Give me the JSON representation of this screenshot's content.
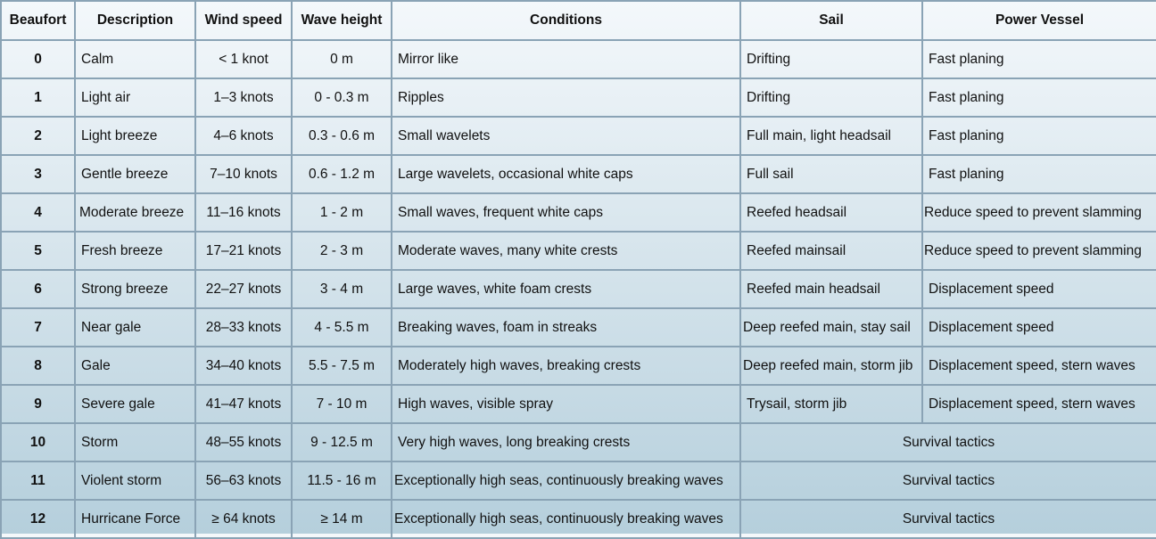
{
  "headers": [
    "Beaufort",
    "Description",
    "Wind speed",
    "Wave height",
    "Conditions",
    "Sail",
    "Power Vessel"
  ],
  "rows": [
    {
      "beaufort": "0",
      "description": "Calm",
      "wind": "< 1 knot",
      "wave": "0 m",
      "conditions": "Mirror like",
      "sail": "Drifting",
      "power": "Fast planing"
    },
    {
      "beaufort": "1",
      "description": "Light air",
      "wind": "1–3 knots",
      "wave": "0 - 0.3 m",
      "conditions": "Ripples",
      "sail": "Drifting",
      "power": "Fast planing"
    },
    {
      "beaufort": "2",
      "description": "Light breeze",
      "wind": "4–6 knots",
      "wave": "0.3 - 0.6 m",
      "conditions": "Small wavelets",
      "sail": "Full main, light headsail",
      "power": "Fast planing"
    },
    {
      "beaufort": "3",
      "description": "Gentle breeze",
      "wind": "7–10 knots",
      "wave": "0.6 - 1.2 m",
      "conditions": "Large wavelets, occasional white caps",
      "sail": "Full sail",
      "power": "Fast planing"
    },
    {
      "beaufort": "4",
      "description": "Moderate breeze",
      "wind": "11–16 knots",
      "wave": "1 - 2 m",
      "conditions": "Small waves, frequent white caps",
      "sail": "Reefed headsail",
      "power": "Reduce speed to prevent slamming"
    },
    {
      "beaufort": "5",
      "description": "Fresh breeze",
      "wind": "17–21 knots",
      "wave": "2 - 3 m",
      "conditions": "Moderate waves, many white crests",
      "sail": "Reefed mainsail",
      "power": "Reduce speed to prevent slamming"
    },
    {
      "beaufort": "6",
      "description": "Strong breeze",
      "wind": "22–27 knots",
      "wave": "3 - 4 m",
      "conditions": "Large waves, white foam crests",
      "sail": "Reefed main headsail",
      "power": "Displacement speed"
    },
    {
      "beaufort": "7",
      "description": "Near gale",
      "wind": "28–33 knots",
      "wave": "4 - 5.5 m",
      "conditions": "Breaking waves, foam in streaks",
      "sail": "Deep reefed main, stay sail",
      "power": "Displacement speed"
    },
    {
      "beaufort": "8",
      "description": "Gale",
      "wind": "34–40 knots",
      "wave": "5.5 - 7.5 m",
      "conditions": "Moderately high waves, breaking crests",
      "sail": "Deep reefed main, storm jib",
      "power": "Displacement speed, stern waves"
    },
    {
      "beaufort": "9",
      "description": "Severe gale",
      "wind": "41–47 knots",
      "wave": "7 - 10 m",
      "conditions": "High waves, visible spray",
      "sail": "Trysail, storm jib",
      "power": "Displacement speed, stern waves"
    },
    {
      "beaufort": "10",
      "description": "Storm",
      "wind": "48–55 knots",
      "wave": "9 - 12.5 m",
      "conditions": "Very high waves, long breaking crests",
      "tactics": "Survival tactics"
    },
    {
      "beaufort": "11",
      "description": "Violent storm",
      "wind": "56–63 knots",
      "wave": "11.5 - 16 m",
      "conditions": "Exceptionally high seas, continuously breaking waves",
      "tactics": "Survival tactics"
    },
    {
      "beaufort": "12",
      "description": "Hurricane Force",
      "wind": "≥ 64 knots",
      "wave": "≥ 14 m",
      "conditions": "Exceptionally high seas, continuously breaking waves",
      "tactics": "Survival tactics"
    }
  ]
}
